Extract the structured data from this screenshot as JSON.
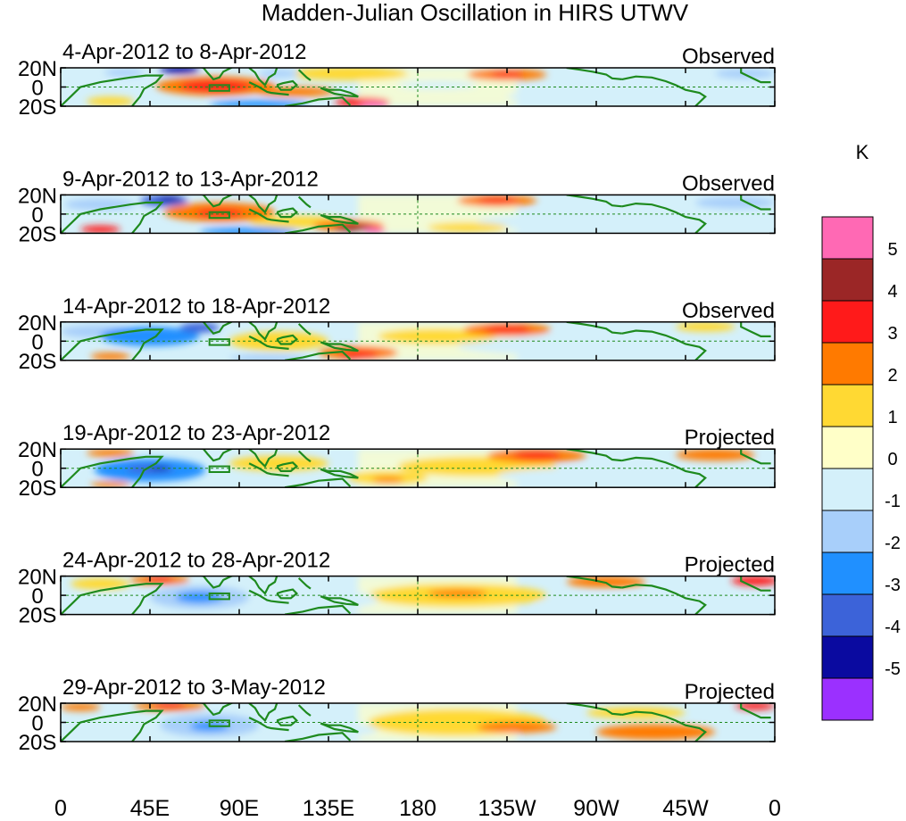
{
  "chart_data": {
    "type": "heatmap",
    "title": "Madden-Julian Oscillation in HIRS UTWV",
    "x_ticks": [
      "0",
      "45E",
      "90E",
      "135E",
      "180",
      "135W",
      "90W",
      "45W",
      "0"
    ],
    "y_ticks": [
      "20N",
      "0",
      "20S"
    ],
    "xlim": [
      0,
      360
    ],
    "ylim": [
      -20,
      20
    ],
    "units": "K",
    "colorbar": {
      "label": "K",
      "tick_labels": [
        "5",
        "4",
        "3",
        "2",
        "1",
        "0",
        "-1",
        "-2",
        "-3",
        "-4",
        "-5"
      ],
      "colors": [
        "#ff69b4",
        "#9b2626",
        "#ff1a1a",
        "#ff7a00",
        "#ffd933",
        "#ffffc8",
        "#d4f0fa",
        "#a8cffa",
        "#2090ff",
        "#3c63d9",
        "#0a0aa0",
        "#9b30ff"
      ]
    },
    "panels": [
      {
        "date_range": "4-Apr-2012 to 8-Apr-2012",
        "status": "Observed",
        "blobs": [
          {
            "lon": 60,
            "lat": 18,
            "rlon": 10,
            "rlat": 4,
            "v": -5
          },
          {
            "lon": 78,
            "lat": 1,
            "rlon": 30,
            "rlat": 10,
            "v": 2
          },
          {
            "lon": 78,
            "lat": 1,
            "rlon": 18,
            "rlat": 6,
            "v": 3
          },
          {
            "lon": 118,
            "lat": -5,
            "rlon": 20,
            "rlat": 5,
            "v": 2
          },
          {
            "lon": 152,
            "lat": -16,
            "rlon": 14,
            "rlat": 5,
            "v": 3
          },
          {
            "lon": 158,
            "lat": -18,
            "rlon": 7,
            "rlat": 3,
            "v": 5
          },
          {
            "lon": 145,
            "lat": 14,
            "rlon": 30,
            "rlat": 7,
            "v": 1
          },
          {
            "lon": 225,
            "lat": 13,
            "rlon": 20,
            "rlat": 6,
            "v": 2
          },
          {
            "lon": 225,
            "lat": 13,
            "rlon": 8,
            "rlat": 3,
            "v": 3
          },
          {
            "lon": 25,
            "lat": -15,
            "rlon": 12,
            "rlat": 5,
            "v": 1
          },
          {
            "lon": 32,
            "lat": 15,
            "rlon": 10,
            "rlat": 4,
            "v": -2
          },
          {
            "lon": 100,
            "lat": -18,
            "rlon": 25,
            "rlat": 4,
            "v": -3
          },
          {
            "lon": 110,
            "lat": 14,
            "rlon": 10,
            "rlat": 4,
            "v": -2
          },
          {
            "lon": 275,
            "lat": -10,
            "rlon": 50,
            "rlat": 8,
            "v": -1
          },
          {
            "lon": 190,
            "lat": 2,
            "rlon": 20,
            "rlat": 4,
            "v": -1
          },
          {
            "lon": 345,
            "lat": 14,
            "rlon": 15,
            "rlat": 5,
            "v": -2
          }
        ]
      },
      {
        "date_range": "9-Apr-2012 to 13-Apr-2012",
        "status": "Observed",
        "blobs": [
          {
            "lon": 52,
            "lat": 14,
            "rlon": 12,
            "rlat": 6,
            "v": -4
          },
          {
            "lon": 55,
            "lat": 16,
            "rlon": 6,
            "rlat": 3,
            "v": -5
          },
          {
            "lon": 80,
            "lat": 2,
            "rlon": 28,
            "rlat": 10,
            "v": 2
          },
          {
            "lon": 80,
            "lat": 1,
            "rlon": 12,
            "rlat": 4,
            "v": 3
          },
          {
            "lon": 120,
            "lat": -8,
            "rlon": 25,
            "rlat": 6,
            "v": 1
          },
          {
            "lon": 145,
            "lat": -12,
            "rlon": 18,
            "rlat": 6,
            "v": 2
          },
          {
            "lon": 148,
            "lat": -14,
            "rlon": 10,
            "rlat": 4,
            "v": 4
          },
          {
            "lon": 158,
            "lat": -17,
            "rlon": 6,
            "rlat": 3,
            "v": 5
          },
          {
            "lon": 220,
            "lat": 14,
            "rlon": 20,
            "rlat": 6,
            "v": 2
          },
          {
            "lon": 220,
            "lat": 14,
            "rlon": 10,
            "rlat": 3,
            "v": 3
          },
          {
            "lon": 20,
            "lat": -16,
            "rlon": 10,
            "rlat": 4,
            "v": 3
          },
          {
            "lon": 95,
            "lat": -18,
            "rlon": 25,
            "rlat": 4,
            "v": -3
          },
          {
            "lon": 20,
            "lat": 10,
            "rlon": 18,
            "rlat": 6,
            "v": -2
          },
          {
            "lon": 270,
            "lat": -8,
            "rlon": 60,
            "rlat": 10,
            "v": -1
          },
          {
            "lon": 340,
            "lat": 12,
            "rlon": 20,
            "rlat": 6,
            "v": -2
          },
          {
            "lon": 205,
            "lat": -14,
            "rlon": 20,
            "rlat": 5,
            "v": 1
          }
        ]
      },
      {
        "date_range": "14-Apr-2012 to 18-Apr-2012",
        "status": "Observed",
        "blobs": [
          {
            "lon": 45,
            "lat": 5,
            "rlon": 25,
            "rlat": 10,
            "v": -3
          },
          {
            "lon": 70,
            "lat": 14,
            "rlon": 10,
            "rlat": 5,
            "v": -4
          },
          {
            "lon": 110,
            "lat": 0,
            "rlon": 25,
            "rlat": 10,
            "v": 1
          },
          {
            "lon": 150,
            "lat": -12,
            "rlon": 20,
            "rlat": 7,
            "v": 2
          },
          {
            "lon": 150,
            "lat": -14,
            "rlon": 10,
            "rlat": 4,
            "v": 3
          },
          {
            "lon": 225,
            "lat": 12,
            "rlon": 22,
            "rlat": 7,
            "v": 2
          },
          {
            "lon": 225,
            "lat": 12,
            "rlon": 12,
            "rlat": 4,
            "v": 3
          },
          {
            "lon": 25,
            "lat": -16,
            "rlon": 10,
            "rlat": 4,
            "v": 2
          },
          {
            "lon": 20,
            "lat": 10,
            "rlon": 20,
            "rlat": 7,
            "v": -2
          },
          {
            "lon": 260,
            "lat": -5,
            "rlon": 60,
            "rlat": 10,
            "v": -1
          },
          {
            "lon": 190,
            "lat": 5,
            "rlon": 30,
            "rlat": 8,
            "v": 1
          },
          {
            "lon": 325,
            "lat": 15,
            "rlon": 15,
            "rlat": 5,
            "v": 1
          },
          {
            "lon": 105,
            "lat": -18,
            "rlon": 20,
            "rlat": 4,
            "v": -2
          }
        ]
      },
      {
        "date_range": "19-Apr-2012 to 23-Apr-2012",
        "status": "Projected",
        "blobs": [
          {
            "lon": 45,
            "lat": -2,
            "rlon": 28,
            "rlat": 12,
            "v": -3
          },
          {
            "lon": 45,
            "lat": -1,
            "rlon": 12,
            "rlat": 4,
            "v": -4
          },
          {
            "lon": 50,
            "lat": 0,
            "rlon": 5,
            "rlat": 2,
            "v": -5
          },
          {
            "lon": 110,
            "lat": 5,
            "rlon": 25,
            "rlat": 8,
            "v": 1
          },
          {
            "lon": 165,
            "lat": -10,
            "rlon": 20,
            "rlat": 7,
            "v": 1
          },
          {
            "lon": 165,
            "lat": -12,
            "rlon": 8,
            "rlat": 3,
            "v": 2
          },
          {
            "lon": 240,
            "lat": 13,
            "rlon": 25,
            "rlat": 7,
            "v": 2
          },
          {
            "lon": 240,
            "lat": 13,
            "rlon": 12,
            "rlat": 4,
            "v": 3
          },
          {
            "lon": 330,
            "lat": 14,
            "rlon": 20,
            "rlat": 6,
            "v": 2
          },
          {
            "lon": 25,
            "lat": 16,
            "rlon": 12,
            "rlat": 4,
            "v": 2
          },
          {
            "lon": 25,
            "lat": -17,
            "rlon": 10,
            "rlat": 3,
            "v": 2
          },
          {
            "lon": 210,
            "lat": 2,
            "rlon": 40,
            "rlat": 10,
            "v": 1
          },
          {
            "lon": 270,
            "lat": -8,
            "rlon": 50,
            "rlat": 9,
            "v": -1
          }
        ]
      },
      {
        "date_range": "24-Apr-2012 to 28-Apr-2012",
        "status": "Projected",
        "blobs": [
          {
            "lon": 70,
            "lat": -2,
            "rlon": 25,
            "rlat": 12,
            "v": -2
          },
          {
            "lon": 70,
            "lat": -2,
            "rlon": 12,
            "rlat": 6,
            "v": -3
          },
          {
            "lon": 50,
            "lat": 16,
            "rlon": 15,
            "rlat": 5,
            "v": 2
          },
          {
            "lon": 50,
            "lat": 17,
            "rlon": 7,
            "rlat": 3,
            "v": 3
          },
          {
            "lon": 200,
            "lat": 0,
            "rlon": 45,
            "rlat": 12,
            "v": 1
          },
          {
            "lon": 200,
            "lat": 2,
            "rlon": 15,
            "rlat": 4,
            "v": 2
          },
          {
            "lon": 275,
            "lat": 14,
            "rlon": 20,
            "rlat": 6,
            "v": 2
          },
          {
            "lon": 350,
            "lat": 15,
            "rlon": 12,
            "rlat": 5,
            "v": 3
          },
          {
            "lon": 130,
            "lat": -5,
            "rlon": 30,
            "rlat": 10,
            "v": -1
          },
          {
            "lon": 20,
            "lat": 12,
            "rlon": 15,
            "rlat": 6,
            "v": 1
          },
          {
            "lon": 280,
            "lat": -10,
            "rlon": 40,
            "rlat": 8,
            "v": -1
          }
        ]
      },
      {
        "date_range": "29-Apr-2012 to 3-May-2012",
        "status": "Projected",
        "blobs": [
          {
            "lon": 75,
            "lat": -3,
            "rlon": 25,
            "rlat": 12,
            "v": -2
          },
          {
            "lon": 75,
            "lat": -4,
            "rlon": 10,
            "rlat": 5,
            "v": -3
          },
          {
            "lon": 55,
            "lat": 17,
            "rlon": 18,
            "rlat": 5,
            "v": 2
          },
          {
            "lon": 55,
            "lat": 18,
            "rlon": 8,
            "rlat": 3,
            "v": 3
          },
          {
            "lon": 200,
            "lat": 0,
            "rlon": 45,
            "rlat": 14,
            "v": 1
          },
          {
            "lon": 230,
            "lat": -5,
            "rlon": 20,
            "rlat": 6,
            "v": 2
          },
          {
            "lon": 300,
            "lat": -10,
            "rlon": 30,
            "rlat": 8,
            "v": 2
          },
          {
            "lon": 350,
            "lat": 17,
            "rlon": 10,
            "rlat": 4,
            "v": 3
          },
          {
            "lon": 135,
            "lat": -8,
            "rlon": 25,
            "rlat": 8,
            "v": -1
          },
          {
            "lon": 10,
            "lat": 16,
            "rlon": 10,
            "rlat": 4,
            "v": 2
          },
          {
            "lon": 290,
            "lat": 10,
            "rlon": 25,
            "rlat": 6,
            "v": 1
          }
        ]
      }
    ]
  }
}
